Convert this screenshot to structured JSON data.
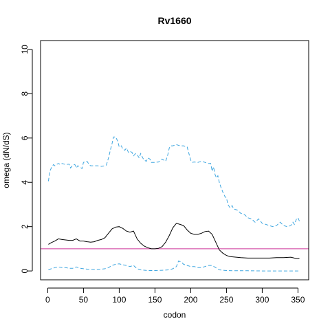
{
  "chart_data": {
    "type": "line",
    "title": "Rv1660",
    "xlabel": "codon",
    "ylabel": "omega (dN/dS)",
    "xlim": [
      -10,
      365
    ],
    "ylim": [
      -0.4,
      10.4
    ],
    "x_ticks": [
      0,
      50,
      100,
      150,
      200,
      250,
      300,
      350
    ],
    "y_ticks": [
      0,
      2,
      4,
      6,
      8,
      10
    ],
    "grid": false,
    "legend": "none",
    "reference_line": {
      "y": 1,
      "color": "#cc3399"
    },
    "series": [
      {
        "role": "upper",
        "style": "dashed",
        "color": "#3ea6e0",
        "x": [
          1,
          3,
          5,
          8,
          10,
          13,
          15,
          18,
          20,
          25,
          30,
          32,
          35,
          38,
          40,
          42,
          45,
          48,
          50,
          55,
          58,
          60,
          65,
          70,
          75,
          80,
          82,
          85,
          88,
          90,
          92,
          95,
          98,
          100,
          103,
          105,
          108,
          110,
          113,
          115,
          118,
          120,
          123,
          125,
          128,
          130,
          133,
          135,
          138,
          140,
          143,
          145,
          150,
          155,
          160,
          165,
          168,
          170,
          172,
          175,
          180,
          185,
          190,
          195,
          200,
          202,
          205,
          210,
          215,
          220,
          225,
          228,
          230,
          232,
          234,
          236,
          238,
          240,
          242,
          245,
          248,
          250,
          252,
          255,
          258,
          260,
          265,
          270,
          275,
          280,
          285,
          290,
          295,
          300,
          305,
          310,
          315,
          320,
          325,
          330,
          335,
          340,
          343,
          345,
          348,
          350,
          352
        ],
        "y": [
          4.05,
          4.5,
          4.65,
          4.8,
          4.75,
          4.82,
          4.85,
          4.8,
          4.85,
          4.8,
          4.82,
          4.65,
          4.78,
          4.8,
          4.65,
          4.75,
          4.7,
          4.62,
          4.9,
          4.95,
          4.8,
          4.75,
          4.75,
          4.75,
          4.72,
          4.75,
          4.78,
          5.1,
          5.5,
          5.75,
          6.05,
          6.05,
          5.85,
          5.6,
          5.65,
          5.5,
          5.45,
          5.55,
          5.35,
          5.4,
          5.35,
          5.2,
          5.3,
          5.25,
          5.1,
          5.3,
          5.1,
          5.0,
          4.95,
          5.1,
          5.05,
          4.9,
          4.9,
          4.92,
          5.05,
          4.95,
          5.25,
          5.55,
          5.65,
          5.65,
          5.7,
          5.65,
          5.65,
          5.6,
          5.0,
          4.9,
          4.92,
          4.9,
          4.95,
          4.9,
          4.85,
          4.85,
          4.5,
          4.7,
          4.35,
          4.2,
          4.3,
          4.0,
          3.8,
          3.55,
          3.35,
          3.3,
          3.0,
          2.85,
          2.95,
          2.8,
          2.75,
          2.6,
          2.55,
          2.4,
          2.35,
          2.2,
          2.35,
          2.15,
          2.1,
          2.05,
          2.0,
          2.05,
          2.2,
          2.05,
          2.0,
          2.05,
          2.2,
          2.1,
          2.35,
          2.4,
          2.25
        ]
      },
      {
        "role": "estimate",
        "style": "solid",
        "color": "#000000",
        "x": [
          1,
          5,
          10,
          15,
          20,
          25,
          30,
          35,
          40,
          45,
          50,
          55,
          60,
          65,
          70,
          75,
          80,
          85,
          90,
          95,
          100,
          105,
          110,
          115,
          120,
          125,
          130,
          135,
          140,
          145,
          150,
          155,
          160,
          165,
          170,
          175,
          180,
          185,
          190,
          195,
          200,
          205,
          210,
          215,
          220,
          225,
          230,
          235,
          240,
          245,
          250,
          255,
          260,
          270,
          280,
          290,
          300,
          310,
          320,
          330,
          340,
          345,
          350,
          352
        ],
        "y": [
          1.2,
          1.28,
          1.35,
          1.45,
          1.42,
          1.4,
          1.38,
          1.38,
          1.45,
          1.35,
          1.35,
          1.32,
          1.3,
          1.32,
          1.38,
          1.42,
          1.5,
          1.7,
          1.9,
          1.98,
          2.0,
          1.92,
          1.8,
          1.75,
          1.8,
          1.45,
          1.25,
          1.12,
          1.05,
          1.0,
          1.0,
          1.02,
          1.1,
          1.3,
          1.6,
          1.95,
          2.15,
          2.1,
          2.05,
          1.85,
          1.7,
          1.65,
          1.65,
          1.7,
          1.78,
          1.8,
          1.65,
          1.3,
          0.95,
          0.8,
          0.7,
          0.65,
          0.63,
          0.6,
          0.58,
          0.58,
          0.58,
          0.58,
          0.6,
          0.6,
          0.62,
          0.58,
          0.55,
          0.58
        ]
      },
      {
        "role": "lower",
        "style": "dashed",
        "color": "#3ea6e0",
        "x": [
          1,
          5,
          10,
          15,
          20,
          25,
          30,
          35,
          40,
          45,
          50,
          55,
          60,
          65,
          70,
          75,
          80,
          85,
          90,
          95,
          100,
          105,
          110,
          115,
          120,
          125,
          130,
          140,
          150,
          160,
          170,
          175,
          180,
          183,
          187,
          190,
          195,
          200,
          205,
          210,
          215,
          220,
          225,
          230,
          235,
          240,
          250,
          260,
          280,
          300,
          320,
          340,
          352
        ],
        "y": [
          0.05,
          0.1,
          0.15,
          0.18,
          0.15,
          0.15,
          0.12,
          0.12,
          0.18,
          0.12,
          0.1,
          0.08,
          0.08,
          0.07,
          0.07,
          0.08,
          0.1,
          0.15,
          0.25,
          0.3,
          0.32,
          0.28,
          0.25,
          0.2,
          0.25,
          0.1,
          0.05,
          0.02,
          0.02,
          0.03,
          0.05,
          0.1,
          0.2,
          0.45,
          0.4,
          0.3,
          0.25,
          0.2,
          0.2,
          0.15,
          0.15,
          0.2,
          0.25,
          0.25,
          0.15,
          0.05,
          0.02,
          0.01,
          0.01,
          0.0,
          0.0,
          0.0,
          0.0
        ]
      }
    ]
  }
}
